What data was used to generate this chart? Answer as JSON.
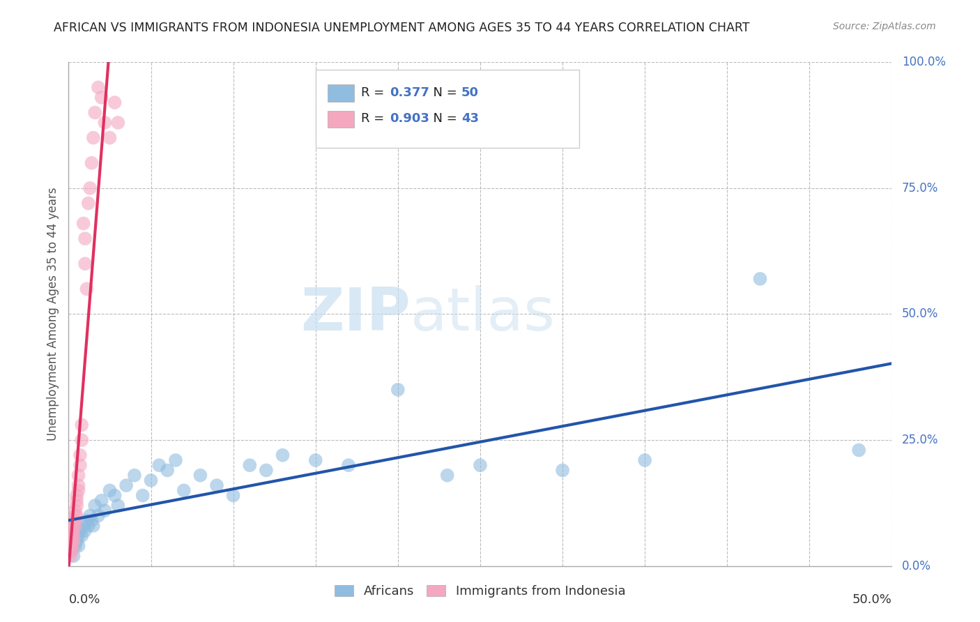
{
  "title": "AFRICAN VS IMMIGRANTS FROM INDONESIA UNEMPLOYMENT AMONG AGES 35 TO 44 YEARS CORRELATION CHART",
  "source": "Source: ZipAtlas.com",
  "ylabel": "Unemployment Among Ages 35 to 44 years",
  "yaxis_ticks": [
    "0.0%",
    "25.0%",
    "50.0%",
    "75.0%",
    "100.0%"
  ],
  "yaxis_values": [
    0.0,
    0.25,
    0.5,
    0.75,
    1.0
  ],
  "watermark_zip": "ZIP",
  "watermark_atlas": "atlas",
  "legend_r": [
    {
      "label_r": "R = ",
      "val_r": "0.377",
      "label_n": "  N = ",
      "val_n": "50",
      "color": "#a8c8e8"
    },
    {
      "label_r": "R = ",
      "val_r": "0.903",
      "label_n": "  N = ",
      "val_n": "43",
      "color": "#f4b8c8"
    }
  ],
  "legend_labels_bottom": [
    "Africans",
    "Immigrants from Indonesia"
  ],
  "africans_color": "#90bce0",
  "indonesia_color": "#f4a8c0",
  "line_african_color": "#2255aa",
  "line_indonesia_color": "#e03060",
  "xlim": [
    0.0,
    0.5
  ],
  "ylim": [
    0.0,
    1.0
  ],
  "background_color": "#ffffff",
  "grid_color": "#bbbbbb",
  "title_color": "#222222",
  "source_color": "#888888",
  "africans_x": [
    0.001,
    0.002,
    0.002,
    0.003,
    0.003,
    0.004,
    0.004,
    0.005,
    0.005,
    0.006,
    0.006,
    0.007,
    0.008,
    0.009,
    0.01,
    0.011,
    0.012,
    0.013,
    0.014,
    0.015,
    0.016,
    0.018,
    0.02,
    0.022,
    0.025,
    0.028,
    0.03,
    0.035,
    0.04,
    0.045,
    0.05,
    0.055,
    0.06,
    0.065,
    0.07,
    0.08,
    0.09,
    0.1,
    0.11,
    0.12,
    0.13,
    0.15,
    0.17,
    0.2,
    0.23,
    0.25,
    0.3,
    0.35,
    0.42,
    0.48
  ],
  "africans_y": [
    0.03,
    0.04,
    0.05,
    0.02,
    0.06,
    0.04,
    0.08,
    0.05,
    0.07,
    0.06,
    0.04,
    0.07,
    0.06,
    0.08,
    0.07,
    0.09,
    0.08,
    0.1,
    0.09,
    0.08,
    0.12,
    0.1,
    0.13,
    0.11,
    0.15,
    0.14,
    0.12,
    0.16,
    0.18,
    0.14,
    0.17,
    0.2,
    0.19,
    0.21,
    0.15,
    0.18,
    0.16,
    0.14,
    0.2,
    0.19,
    0.22,
    0.21,
    0.2,
    0.35,
    0.18,
    0.2,
    0.19,
    0.21,
    0.57,
    0.23
  ],
  "indonesia_x": [
    0.001,
    0.001,
    0.001,
    0.002,
    0.002,
    0.002,
    0.002,
    0.002,
    0.003,
    0.003,
    0.003,
    0.003,
    0.003,
    0.004,
    0.004,
    0.004,
    0.004,
    0.005,
    0.005,
    0.005,
    0.005,
    0.006,
    0.006,
    0.006,
    0.007,
    0.007,
    0.008,
    0.008,
    0.009,
    0.01,
    0.01,
    0.011,
    0.012,
    0.013,
    0.014,
    0.015,
    0.016,
    0.018,
    0.02,
    0.022,
    0.025,
    0.028,
    0.03
  ],
  "indonesia_y": [
    0.02,
    0.03,
    0.04,
    0.03,
    0.05,
    0.04,
    0.06,
    0.07,
    0.05,
    0.06,
    0.07,
    0.08,
    0.09,
    0.08,
    0.1,
    0.09,
    0.11,
    0.1,
    0.12,
    0.13,
    0.14,
    0.15,
    0.16,
    0.18,
    0.2,
    0.22,
    0.25,
    0.28,
    0.68,
    0.6,
    0.65,
    0.55,
    0.72,
    0.75,
    0.8,
    0.85,
    0.9,
    0.95,
    0.93,
    0.88,
    0.85,
    0.92,
    0.88
  ]
}
